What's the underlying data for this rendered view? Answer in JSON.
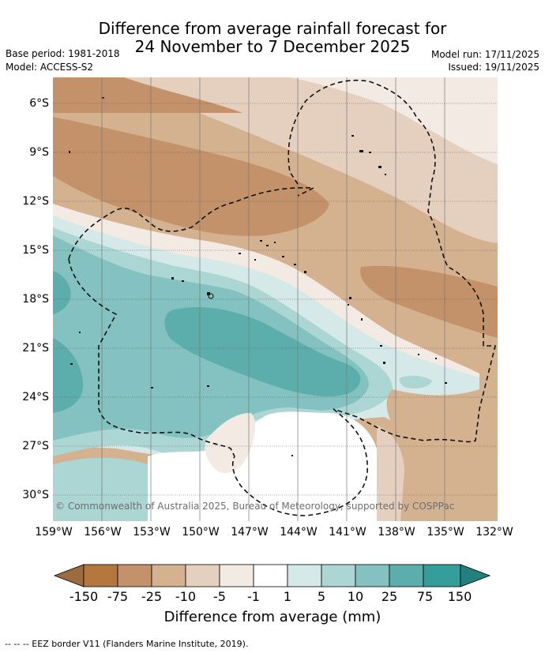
{
  "title": {
    "line1": "Difference from average rainfall forecast for",
    "line2": "24 November to 7 December 2025"
  },
  "meta": {
    "base_period": "Base period: 1981-2018",
    "model": "Model: ACCESS-S2",
    "model_run": "Model run: 17/11/2025",
    "issued": "Issued: 19/11/2025"
  },
  "map": {
    "latitude_labels": [
      "6°S",
      "9°S",
      "12°S",
      "15°S",
      "18°S",
      "21°S",
      "24°S",
      "27°S",
      "30°S"
    ],
    "longitude_labels": [
      "159°W",
      "156°W",
      "153°W",
      "150°W",
      "147°W",
      "144°W",
      "141°W",
      "138°W",
      "135°W",
      "132°W"
    ],
    "copyright": "© Commonwealth of Australia 2025, Bureau of Meteorology, supported by COSPPac"
  },
  "colorbar": {
    "ticks": [
      "-150",
      "-75",
      "-25",
      "-10",
      "-5",
      "-1",
      "1",
      "5",
      "10",
      "25",
      "75",
      "150"
    ],
    "colors": [
      "#9c6b3e",
      "#b4783e",
      "#c4926a",
      "#d4b290",
      "#e5d0bf",
      "#f4eae4",
      "#ffffff",
      "#d5e9e8",
      "#acd6d4",
      "#83c2c0",
      "#5caeac",
      "#339e9a",
      "#24807e"
    ],
    "title": "Difference from average (mm)"
  },
  "footer": {
    "legend": "--  --  -- EEZ border V11 (Flanders Marine Institute, 2019)."
  }
}
